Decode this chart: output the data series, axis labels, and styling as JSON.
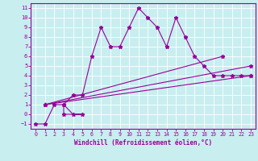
{
  "xlabel": "Windchill (Refroidissement éolien,°C)",
  "bg_color": "#c8eef0",
  "grid_color": "#aad8da",
  "line_color": "#990099",
  "xlim": [
    -0.5,
    23.5
  ],
  "ylim": [
    -1.5,
    11.5
  ],
  "xticks": [
    0,
    1,
    2,
    3,
    4,
    5,
    6,
    7,
    8,
    9,
    10,
    11,
    12,
    13,
    14,
    15,
    16,
    17,
    18,
    19,
    20,
    21,
    22,
    23
  ],
  "yticks": [
    -1,
    0,
    1,
    2,
    3,
    4,
    5,
    6,
    7,
    8,
    9,
    10,
    11
  ],
  "line1_x": [
    0,
    1,
    2,
    3,
    4,
    5,
    3,
    3,
    4,
    5,
    6,
    7,
    8,
    9,
    10,
    11,
    12,
    13,
    14,
    15,
    16,
    17,
    18,
    19,
    20,
    21,
    22,
    23
  ],
  "line1_y": [
    -1,
    -1,
    1,
    1,
    0,
    0,
    0,
    1,
    2,
    2,
    6,
    9,
    7,
    7,
    9,
    11,
    10,
    9,
    7,
    10,
    8,
    6,
    5,
    4,
    4,
    4,
    4,
    4
  ],
  "line2_x": [
    1,
    23
  ],
  "line2_y": [
    1,
    5
  ],
  "line3_x": [
    1,
    20
  ],
  "line3_y": [
    1,
    6
  ],
  "line4_x": [
    1,
    23
  ],
  "line4_y": [
    1,
    4
  ]
}
